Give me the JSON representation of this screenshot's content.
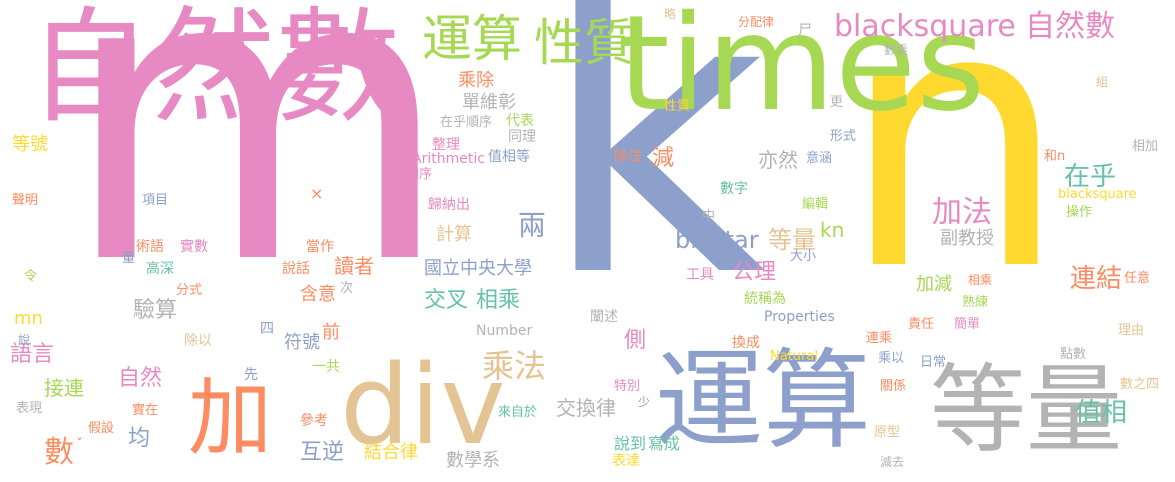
{
  "palette": {
    "pink": "#e78ac3",
    "green": "#a6d854",
    "blue": "#8da0cb",
    "yellow": "#ffd92f",
    "orange": "#fc8d62",
    "teal": "#66c2a5",
    "tan": "#e5c494",
    "gray": "#b3b3b3"
  },
  "words": [
    {
      "text": "m",
      "color": "#e78ac3"
    },
    {
      "text": "k",
      "color": "#8da0cb"
    },
    {
      "text": "n",
      "color": "#ffd92f"
    },
    {
      "text": "times",
      "color": "#a6d854"
    },
    {
      "text": "自然數",
      "color": "#e78ac3"
    },
    {
      "text": "運算",
      "color": "#8da0cb"
    },
    {
      "text": "等量",
      "color": "#b3b3b3"
    },
    {
      "text": "div",
      "color": "#e5c494"
    },
    {
      "text": "加",
      "color": "#fc8d62"
    },
    {
      "text": "運算",
      "color": "#a6d854"
    },
    {
      "text": "性質",
      "color": "#a6d854"
    },
    {
      "text": "blacksquare",
      "color": "#e78ac3"
    },
    {
      "text": "自然數",
      "color": "#e78ac3"
    },
    {
      "text": "加法",
      "color": "#e78ac3"
    },
    {
      "text": "乘法",
      "color": "#e5c494"
    },
    {
      "text": "bigstar",
      "color": "#8da0cb"
    },
    {
      "text": "等量",
      "color": "#e5c494"
    },
    {
      "text": "兩",
      "color": "#8da0cb"
    },
    {
      "text": "在乎",
      "color": "#66c2a5"
    },
    {
      "text": "連結",
      "color": "#fc8d62"
    },
    {
      "text": "值相",
      "color": "#66c2a5"
    },
    {
      "text": "驗算",
      "color": "#b3b3b3"
    },
    {
      "text": "語言",
      "color": "#e78ac3"
    },
    {
      "text": "自然",
      "color": "#e78ac3"
    },
    {
      "text": "接連",
      "color": "#a6d854"
    },
    {
      "text": "數",
      "color": "#fc8d62"
    },
    {
      "text": "均",
      "color": "#8da0cb"
    },
    {
      "text": "交叉",
      "color": "#66c2a5"
    },
    {
      "text": "相乘",
      "color": "#66c2a5"
    },
    {
      "text": "國立中央大學",
      "color": "#8da0cb"
    },
    {
      "text": "公理",
      "color": "#e78ac3"
    },
    {
      "text": "kn",
      "color": "#a6d854"
    },
    {
      "text": "讀者",
      "color": "#fc8d62"
    },
    {
      "text": "計算",
      "color": "#e5c494"
    },
    {
      "text": "互逆",
      "color": "#8da0cb"
    },
    {
      "text": "結合律",
      "color": "#ffd92f"
    },
    {
      "text": "交換律",
      "color": "#b3b3b3"
    },
    {
      "text": "數學系",
      "color": "#b3b3b3"
    },
    {
      "text": "說到",
      "color": "#66c2a5"
    },
    {
      "text": "寫成",
      "color": "#66c2a5"
    },
    {
      "text": "側",
      "color": "#e78ac3"
    },
    {
      "text": "符號",
      "color": "#8da0cb"
    },
    {
      "text": "前",
      "color": "#fc8d62"
    },
    {
      "text": "含意",
      "color": "#fc8d62"
    },
    {
      "text": "減",
      "color": "#fc8d62"
    },
    {
      "text": "亦然",
      "color": "#b3b3b3"
    },
    {
      "text": "單維彰",
      "color": "#b3b3b3"
    },
    {
      "text": "乘除",
      "color": "#fc8d62"
    },
    {
      "text": "副教授",
      "color": "#b3b3b3"
    },
    {
      "text": "加減",
      "color": "#a6d854"
    },
    {
      "text": "等號",
      "color": "#ffd92f"
    },
    {
      "text": "mn",
      "color": "#ffd92f"
    },
    {
      "text": "在乎順序",
      "color": "#b3b3b3"
    },
    {
      "text": "代表",
      "color": "#a6d854"
    },
    {
      "text": "同理",
      "color": "#b3b3b3"
    },
    {
      "text": "整理",
      "color": "#e78ac3"
    },
    {
      "text": "值相等",
      "color": "#8da0cb"
    },
    {
      "text": "Arithmetic",
      "color": "#e78ac3"
    },
    {
      "text": "順序",
      "color": "#e78ac3"
    },
    {
      "text": "歸納出",
      "color": "#e78ac3"
    },
    {
      "text": "除法",
      "color": "#fc8d62"
    },
    {
      "text": "數字",
      "color": "#66c2a5"
    },
    {
      "text": "中",
      "color": "#b3b3b3"
    },
    {
      "text": "工具",
      "color": "#e78ac3"
    },
    {
      "text": "大小",
      "color": "#8da0cb"
    },
    {
      "text": "統稱為",
      "color": "#a6d854"
    },
    {
      "text": "Properties",
      "color": "#8da0cb"
    },
    {
      "text": "Number",
      "color": "#b3b3b3"
    },
    {
      "text": "闡述",
      "color": "#b3b3b3"
    },
    {
      "text": "換成",
      "color": "#fc8d62"
    },
    {
      "text": "Natural",
      "color": "#ffd92f"
    },
    {
      "text": "特別",
      "color": "#e78ac3"
    },
    {
      "text": "少",
      "color": "#8da0cb"
    },
    {
      "text": "表達",
      "color": "#ffd92f"
    },
    {
      "text": "來自於",
      "color": "#66c2a5"
    },
    {
      "text": "參考",
      "color": "#fc8d62"
    },
    {
      "text": "一共",
      "color": "#a6d854"
    },
    {
      "text": "四",
      "color": "#8da0cb"
    },
    {
      "text": "先",
      "color": "#8da0cb"
    },
    {
      "text": "除以",
      "color": "#e5c494"
    },
    {
      "text": "說話",
      "color": "#fc8d62"
    },
    {
      "text": "當作",
      "color": "#fc8d62"
    },
    {
      "text": "次",
      "color": "#b3b3b3"
    },
    {
      "text": "術語",
      "color": "#fc8d62"
    },
    {
      "text": "實數",
      "color": "#e78ac3"
    },
    {
      "text": "高深",
      "color": "#66c2a5"
    },
    {
      "text": "分式",
      "color": "#fc8d62"
    },
    {
      "text": "量",
      "color": "#8da0cb"
    },
    {
      "text": "項目",
      "color": "#8da0cb"
    },
    {
      "text": "×",
      "color": "#fc8d62"
    },
    {
      "text": "聲明",
      "color": "#fc8d62"
    },
    {
      "text": "令",
      "color": "#a6d854"
    },
    {
      "text": "說",
      "color": "#8da0cb"
    },
    {
      "text": "表現",
      "color": "#b3b3b3"
    },
    {
      "text": "假設",
      "color": "#fc8d62"
    },
    {
      "text": "實在",
      "color": "#fc8d62"
    },
    {
      "text": "ˇ",
      "color": "#fc8d62"
    },
    {
      "text": "略",
      "color": "#e5c494"
    },
    {
      "text": "分配律",
      "color": "#fc8d62"
    },
    {
      "text": "尸",
      "color": "#b3b3b3"
    },
    {
      "text": "數乘",
      "color": "#b3b3b3"
    },
    {
      "text": "性質",
      "color": "#ffd92f"
    },
    {
      "text": "更",
      "color": "#b3b3b3"
    },
    {
      "text": "形式",
      "color": "#8da0cb"
    },
    {
      "text": "意涵",
      "color": "#8da0cb"
    },
    {
      "text": "編輯",
      "color": "#a6d854"
    },
    {
      "text": "組",
      "color": "#e5c494"
    },
    {
      "text": "相加",
      "color": "#b3b3b3"
    },
    {
      "text": "和n",
      "color": "#fc8d62"
    },
    {
      "text": "blacksquare",
      "color": "#ffd92f"
    },
    {
      "text": "操作",
      "color": "#a6d854"
    },
    {
      "text": "任意",
      "color": "#fc8d62"
    },
    {
      "text": "相乘",
      "color": "#fc8d62"
    },
    {
      "text": "熟練",
      "color": "#a6d854"
    },
    {
      "text": "簡單",
      "color": "#e78ac3"
    },
    {
      "text": "責任",
      "color": "#fc8d62"
    },
    {
      "text": "連乘",
      "color": "#fc8d62"
    },
    {
      "text": "乘以",
      "color": "#8da0cb"
    },
    {
      "text": "日常",
      "color": "#8da0cb"
    },
    {
      "text": "關係",
      "color": "#fc8d62"
    },
    {
      "text": "原型",
      "color": "#e5c494"
    },
    {
      "text": "減去",
      "color": "#b3b3b3"
    },
    {
      "text": "理由",
      "color": "#e5c494"
    },
    {
      "text": "點數",
      "color": "#b3b3b3"
    },
    {
      "text": "數之四",
      "color": "#e5c494"
    }
  ]
}
